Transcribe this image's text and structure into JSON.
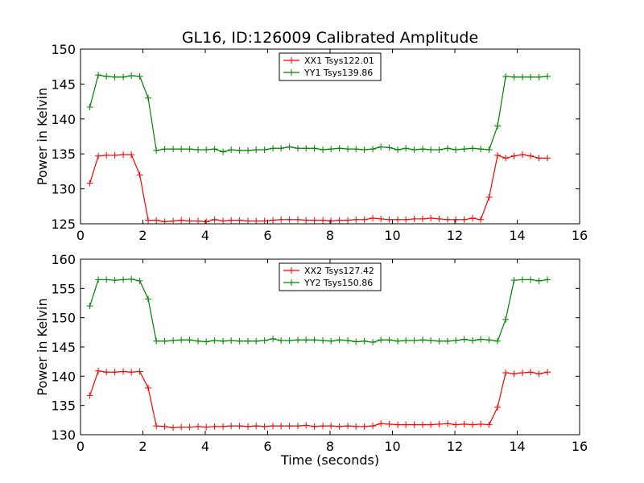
{
  "chart_data": [
    {
      "type": "line",
      "title": "GL16, ID:126009 Calibrated Amplitude",
      "xlabel": "",
      "ylabel": "Power in Kelvin",
      "xlim": [
        0,
        16
      ],
      "ylim": [
        125,
        150
      ],
      "xticks": [
        0,
        2,
        4,
        6,
        8,
        10,
        12,
        14,
        16
      ],
      "yticks": [
        125,
        130,
        135,
        140,
        145,
        150
      ],
      "grid": false,
      "legend": "upper center",
      "x": [
        0.3,
        0.57,
        0.83,
        1.1,
        1.37,
        1.63,
        1.9,
        2.17,
        2.43,
        2.7,
        2.97,
        3.23,
        3.5,
        3.77,
        4.03,
        4.3,
        4.57,
        4.83,
        5.1,
        5.37,
        5.63,
        5.9,
        6.17,
        6.43,
        6.7,
        6.97,
        7.23,
        7.5,
        7.77,
        8.03,
        8.3,
        8.57,
        8.83,
        9.1,
        9.37,
        9.63,
        9.9,
        10.17,
        10.43,
        10.7,
        10.97,
        11.23,
        11.5,
        11.77,
        12.03,
        12.3,
        12.57,
        12.83,
        13.1,
        13.37,
        13.63,
        13.9,
        14.17,
        14.43,
        14.7,
        14.97
      ],
      "series": [
        {
          "name": "XX1 Tsys122.01",
          "color": "#ff0000",
          "values": [
            130.8,
            134.7,
            134.8,
            134.8,
            134.9,
            134.9,
            132.0,
            125.5,
            125.5,
            125.3,
            125.4,
            125.5,
            125.4,
            125.4,
            125.3,
            125.6,
            125.4,
            125.5,
            125.5,
            125.4,
            125.4,
            125.4,
            125.5,
            125.6,
            125.6,
            125.6,
            125.5,
            125.5,
            125.5,
            125.4,
            125.5,
            125.5,
            125.6,
            125.6,
            125.8,
            125.7,
            125.6,
            125.6,
            125.6,
            125.7,
            125.7,
            125.8,
            125.7,
            125.6,
            125.6,
            125.6,
            125.8,
            125.6,
            128.8,
            134.8,
            134.4,
            134.7,
            134.9,
            134.7,
            134.4,
            134.4
          ]
        },
        {
          "name": "YY1 Tsys139.86",
          "color": "#008000",
          "values": [
            141.7,
            146.3,
            146.1,
            146.0,
            146.0,
            146.2,
            146.1,
            143.0,
            135.5,
            135.7,
            135.7,
            135.7,
            135.7,
            135.6,
            135.6,
            135.7,
            135.3,
            135.6,
            135.5,
            135.5,
            135.6,
            135.6,
            135.8,
            135.8,
            136.0,
            135.8,
            135.8,
            135.8,
            135.6,
            135.7,
            135.8,
            135.7,
            135.7,
            135.6,
            135.7,
            136.0,
            135.9,
            135.6,
            135.8,
            135.6,
            135.7,
            135.6,
            135.6,
            135.8,
            135.6,
            135.7,
            135.8,
            135.7,
            135.6,
            139.0,
            146.1,
            146.0,
            146.0,
            146.0,
            146.0,
            146.1
          ]
        }
      ]
    },
    {
      "type": "line",
      "title": "",
      "xlabel": "Time (seconds)",
      "ylabel": "Power in Kelvin",
      "xlim": [
        0,
        16
      ],
      "ylim": [
        130,
        160
      ],
      "xticks": [
        0,
        2,
        4,
        6,
        8,
        10,
        12,
        14,
        16
      ],
      "yticks": [
        130,
        135,
        140,
        145,
        150,
        155,
        160
      ],
      "grid": false,
      "legend": "upper center",
      "x": [
        0.3,
        0.57,
        0.83,
        1.1,
        1.37,
        1.63,
        1.9,
        2.17,
        2.43,
        2.7,
        2.97,
        3.23,
        3.5,
        3.77,
        4.03,
        4.3,
        4.57,
        4.83,
        5.1,
        5.37,
        5.63,
        5.9,
        6.17,
        6.43,
        6.7,
        6.97,
        7.23,
        7.5,
        7.77,
        8.03,
        8.3,
        8.57,
        8.83,
        9.1,
        9.37,
        9.63,
        9.9,
        10.17,
        10.43,
        10.7,
        10.97,
        11.23,
        11.5,
        11.77,
        12.03,
        12.3,
        12.57,
        12.83,
        13.1,
        13.37,
        13.63,
        13.9,
        14.17,
        14.43,
        14.7,
        14.97
      ],
      "series": [
        {
          "name": "XX2 Tsys127.42",
          "color": "#ff0000",
          "values": [
            136.7,
            140.9,
            140.7,
            140.7,
            140.8,
            140.7,
            140.8,
            138.0,
            131.5,
            131.4,
            131.2,
            131.3,
            131.3,
            131.4,
            131.3,
            131.4,
            131.4,
            131.5,
            131.5,
            131.4,
            131.5,
            131.4,
            131.5,
            131.5,
            131.5,
            131.5,
            131.6,
            131.4,
            131.5,
            131.5,
            131.4,
            131.5,
            131.4,
            131.4,
            131.5,
            131.9,
            131.8,
            131.7,
            131.7,
            131.7,
            131.7,
            131.7,
            131.8,
            131.9,
            131.7,
            131.8,
            131.7,
            131.8,
            131.7,
            134.7,
            140.6,
            140.4,
            140.6,
            140.7,
            140.4,
            140.7
          ]
        },
        {
          "name": "YY2 Tsys150.86",
          "color": "#008000",
          "values": [
            152.0,
            156.5,
            156.5,
            156.4,
            156.5,
            156.6,
            156.3,
            153.2,
            146.0,
            146.0,
            146.1,
            146.2,
            146.2,
            146.0,
            145.9,
            146.1,
            146.0,
            146.1,
            146.0,
            146.0,
            146.0,
            146.1,
            146.4,
            146.1,
            146.1,
            146.2,
            146.2,
            146.2,
            146.1,
            146.0,
            146.2,
            146.1,
            145.9,
            146.0,
            145.8,
            146.2,
            146.2,
            146.0,
            146.1,
            146.1,
            146.2,
            146.1,
            146.0,
            146.0,
            146.1,
            146.3,
            146.1,
            146.3,
            146.2,
            146.0,
            149.7,
            156.4,
            156.5,
            156.5,
            156.3,
            156.5
          ]
        }
      ]
    }
  ]
}
